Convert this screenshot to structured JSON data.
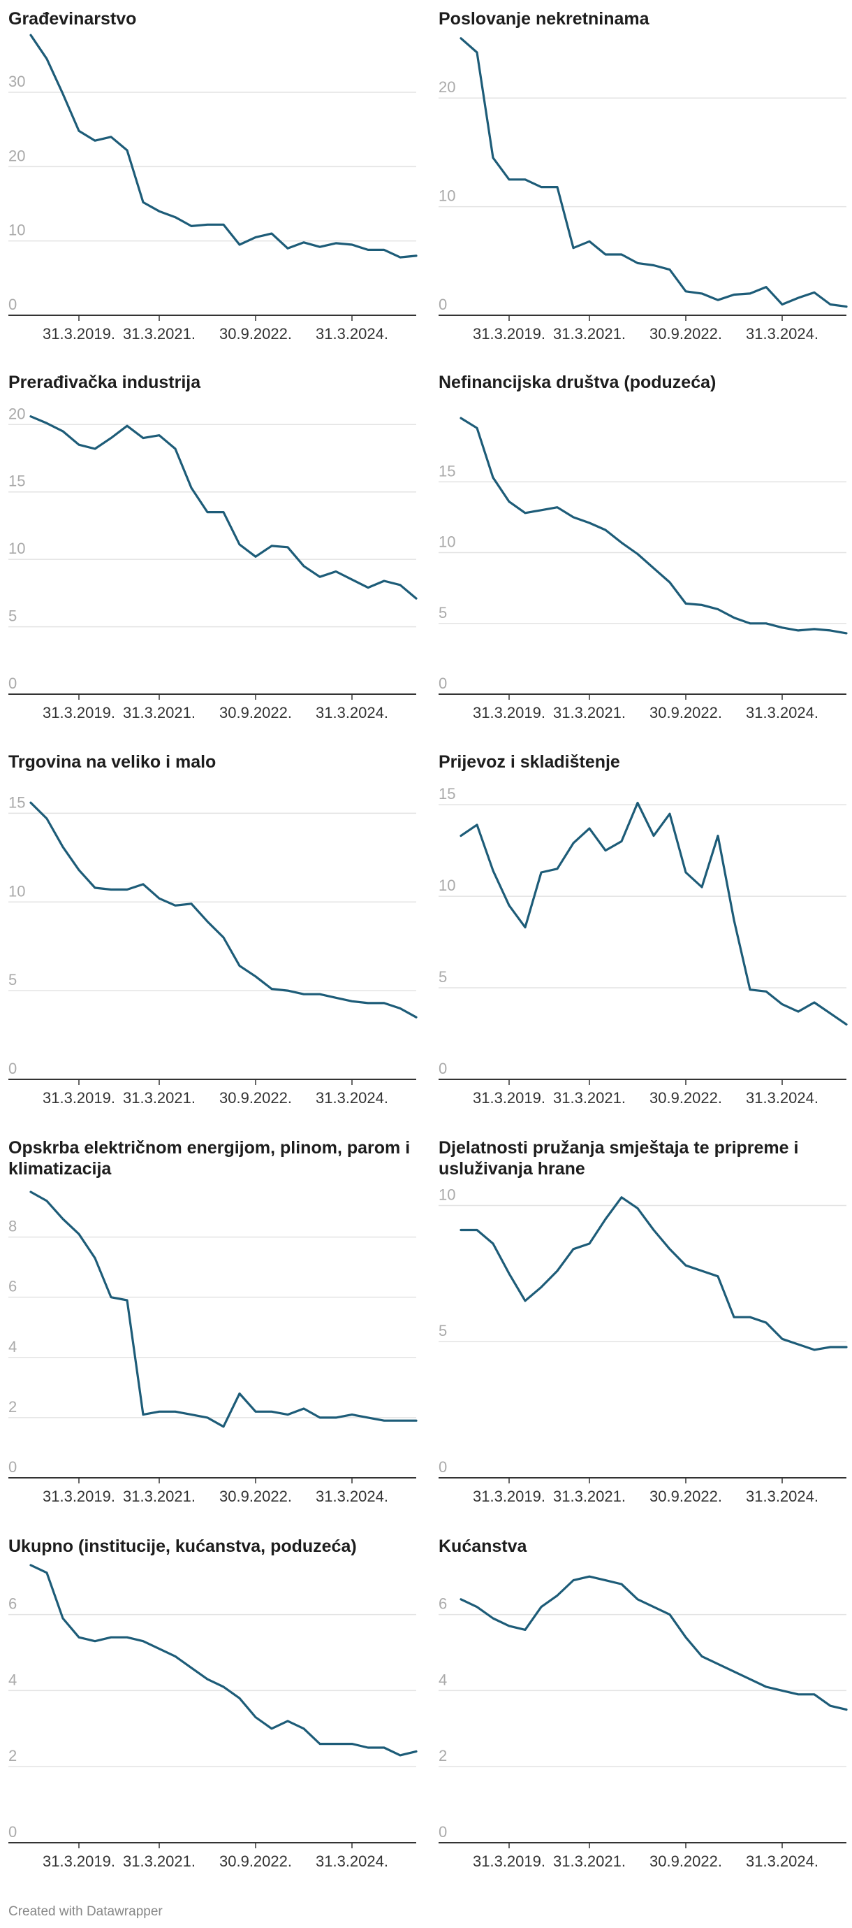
{
  "chart_data": [
    {
      "type": "line",
      "title": "Građevinarstvo",
      "color": "#1d5c78",
      "ylim": [
        0,
        38
      ],
      "yticks": [
        0,
        10,
        20,
        30
      ],
      "categories": [
        null,
        null,
        null,
        "31.3.2019.",
        null,
        null,
        null,
        null,
        "31.3.2021.",
        null,
        null,
        null,
        null,
        null,
        "30.9.2022.",
        null,
        null,
        null,
        null,
        null,
        "31.3.2024.",
        null,
        null,
        null,
        null
      ],
      "values": [
        37.7,
        34.5,
        29.8,
        24.8,
        23.5,
        24,
        22.2,
        15.2,
        14,
        13.2,
        12,
        12.2,
        12.2,
        9.5,
        10.5,
        11,
        9,
        9.8,
        9.2,
        9.7,
        9.5,
        8.8,
        8.8,
        7.8,
        8
      ]
    },
    {
      "type": "line",
      "title": "Poslovanje nekretninama",
      "color": "#1d5c78",
      "ylim": [
        0,
        26
      ],
      "yticks": [
        0,
        10,
        20
      ],
      "categories": [
        null,
        null,
        null,
        "31.3.2019.",
        null,
        null,
        null,
        null,
        "31.3.2021.",
        null,
        null,
        null,
        null,
        null,
        "30.9.2022.",
        null,
        null,
        null,
        null,
        null,
        "31.3.2024.",
        null,
        null,
        null,
        null
      ],
      "values": [
        25.5,
        24.2,
        14.5,
        12.5,
        12.5,
        11.8,
        11.8,
        6.2,
        6.8,
        5.6,
        5.6,
        4.8,
        4.6,
        4.2,
        2.2,
        2,
        1.4,
        1.9,
        2,
        2.6,
        1,
        1.6,
        2.1,
        1,
        0.8
      ]
    },
    {
      "type": "line",
      "title": "Prerađivačka industrija",
      "color": "#1d5c78",
      "ylim": [
        0,
        21
      ],
      "yticks": [
        0,
        5,
        10,
        15,
        20
      ],
      "categories": [
        null,
        null,
        null,
        "31.3.2019.",
        null,
        null,
        null,
        null,
        "31.3.2021.",
        null,
        null,
        null,
        null,
        null,
        "30.9.2022.",
        null,
        null,
        null,
        null,
        null,
        "31.3.2024.",
        null,
        null,
        null,
        null
      ],
      "values": [
        20.6,
        20.1,
        19.5,
        18.5,
        18.2,
        19,
        19.9,
        19,
        19.2,
        18.2,
        15.3,
        13.5,
        13.5,
        11.1,
        10.2,
        11,
        10.9,
        9.5,
        8.7,
        9.1,
        8.5,
        7.9,
        8.4,
        8.1,
        7.1
      ]
    },
    {
      "type": "line",
      "title": "Nefinancijska društva (poduzeća)",
      "color": "#1d5c78",
      "ylim": [
        0,
        20
      ],
      "yticks": [
        0,
        5,
        10,
        15
      ],
      "categories": [
        null,
        null,
        null,
        "31.3.2019.",
        null,
        null,
        null,
        null,
        "31.3.2021.",
        null,
        null,
        null,
        null,
        null,
        "30.9.2022.",
        null,
        null,
        null,
        null,
        null,
        "31.3.2024.",
        null,
        null,
        null,
        null
      ],
      "values": [
        19.5,
        18.8,
        15.3,
        13.6,
        12.8,
        13,
        13.2,
        12.5,
        12.1,
        11.6,
        10.7,
        9.9,
        8.9,
        7.9,
        6.4,
        6.3,
        6,
        5.4,
        5,
        5,
        4.7,
        4.5,
        4.6,
        4.5,
        4.3
      ]
    },
    {
      "type": "line",
      "title": "Trgovina na veliko i malo",
      "color": "#1d5c78",
      "ylim": [
        0,
        16
      ],
      "yticks": [
        0,
        5,
        10,
        15
      ],
      "categories": [
        null,
        null,
        null,
        "31.3.2019.",
        null,
        null,
        null,
        null,
        "31.3.2021.",
        null,
        null,
        null,
        null,
        null,
        "30.9.2022.",
        null,
        null,
        null,
        null,
        null,
        "31.3.2024.",
        null,
        null,
        null,
        null
      ],
      "values": [
        15.6,
        14.7,
        13.1,
        11.8,
        10.8,
        10.7,
        10.7,
        11,
        10.2,
        9.8,
        9.9,
        8.9,
        8,
        6.4,
        5.8,
        5.1,
        5,
        4.8,
        4.8,
        4.6,
        4.4,
        4.3,
        4.3,
        4,
        3.5
      ]
    },
    {
      "type": "line",
      "title": "Prijevoz i skladištenje",
      "color": "#1d5c78",
      "ylim": [
        0,
        15.5
      ],
      "yticks": [
        0,
        5,
        10,
        15
      ],
      "categories": [
        null,
        null,
        null,
        "31.3.2019.",
        null,
        null,
        null,
        null,
        "31.3.2021.",
        null,
        null,
        null,
        null,
        null,
        "30.9.2022.",
        null,
        null,
        null,
        null,
        null,
        "31.3.2024.",
        null,
        null,
        null,
        null
      ],
      "values": [
        13.3,
        13.9,
        11.4,
        9.5,
        8.3,
        11.3,
        11.5,
        12.9,
        13.7,
        12.5,
        13,
        15.1,
        13.3,
        14.5,
        11.3,
        10.5,
        13.3,
        8.7,
        4.9,
        4.8,
        4.1,
        3.7,
        4.2,
        3.6,
        3
      ]
    },
    {
      "type": "line",
      "title": "Opskrba električnom energijom, plinom, parom i klimatizacija",
      "color": "#1d5c78",
      "ylim": [
        0,
        9.5
      ],
      "yticks": [
        0,
        2,
        4,
        6,
        8
      ],
      "categories": [
        null,
        null,
        null,
        "31.3.2019.",
        null,
        null,
        null,
        null,
        "31.3.2021.",
        null,
        null,
        null,
        null,
        null,
        "30.9.2022.",
        null,
        null,
        null,
        null,
        null,
        "31.3.2024.",
        null,
        null,
        null,
        null
      ],
      "values": [
        9.5,
        9.2,
        8.6,
        8.1,
        7.3,
        6,
        5.9,
        2.1,
        2.2,
        2.2,
        2.1,
        2,
        1.7,
        2.8,
        2.2,
        2.2,
        2.1,
        2.3,
        2,
        2,
        2.1,
        2,
        1.9,
        1.9,
        1.9
      ]
    },
    {
      "type": "line",
      "title": "Djelatnosti pružanja smještaja te pripreme i usluživanja hrane",
      "color": "#1d5c78",
      "ylim": [
        0,
        10.5
      ],
      "yticks": [
        0,
        5,
        10
      ],
      "categories": [
        null,
        null,
        null,
        "31.3.2019.",
        null,
        null,
        null,
        null,
        "31.3.2021.",
        null,
        null,
        null,
        null,
        null,
        "30.9.2022.",
        null,
        null,
        null,
        null,
        null,
        "31.3.2024.",
        null,
        null,
        null,
        null
      ],
      "values": [
        9.1,
        9.1,
        8.6,
        7.5,
        6.5,
        7,
        7.6,
        8.4,
        8.6,
        9.5,
        10.3,
        9.9,
        9.1,
        8.4,
        7.8,
        7.6,
        7.4,
        5.9,
        5.9,
        5.7,
        5.1,
        4.9,
        4.7,
        4.8,
        4.8
      ]
    },
    {
      "type": "line",
      "title": "Ukupno (institucije, kućanstva, poduzeća)",
      "color": "#1d5c78",
      "ylim": [
        0,
        7.5
      ],
      "yticks": [
        0,
        2,
        4,
        6
      ],
      "categories": [
        null,
        null,
        null,
        "31.3.2019.",
        null,
        null,
        null,
        null,
        "31.3.2021.",
        null,
        null,
        null,
        null,
        null,
        "30.9.2022.",
        null,
        null,
        null,
        null,
        null,
        "31.3.2024.",
        null,
        null,
        null,
        null
      ],
      "values": [
        7.3,
        7.1,
        5.9,
        5.4,
        5.3,
        5.4,
        5.4,
        5.3,
        5.1,
        4.9,
        4.6,
        4.3,
        4.1,
        3.8,
        3.3,
        3,
        3.2,
        3,
        2.6,
        2.6,
        2.6,
        2.5,
        2.5,
        2.3,
        2.4
      ]
    },
    {
      "type": "line",
      "title": "Kućanstva",
      "color": "#1d5c78",
      "ylim": [
        0,
        7.5
      ],
      "yticks": [
        0,
        2,
        4,
        6
      ],
      "categories": [
        null,
        null,
        null,
        "31.3.2019.",
        null,
        null,
        null,
        null,
        "31.3.2021.",
        null,
        null,
        null,
        null,
        null,
        "30.9.2022.",
        null,
        null,
        null,
        null,
        null,
        "31.3.2024.",
        null,
        null,
        null,
        null
      ],
      "values": [
        6.4,
        6.2,
        5.9,
        5.7,
        5.6,
        6.2,
        6.5,
        6.9,
        7,
        6.9,
        6.8,
        6.4,
        6.2,
        6,
        5.4,
        4.9,
        4.7,
        4.5,
        4.3,
        4.1,
        4,
        3.9,
        3.9,
        3.6,
        3.5
      ]
    }
  ],
  "footer": "Created with Datawrapper"
}
